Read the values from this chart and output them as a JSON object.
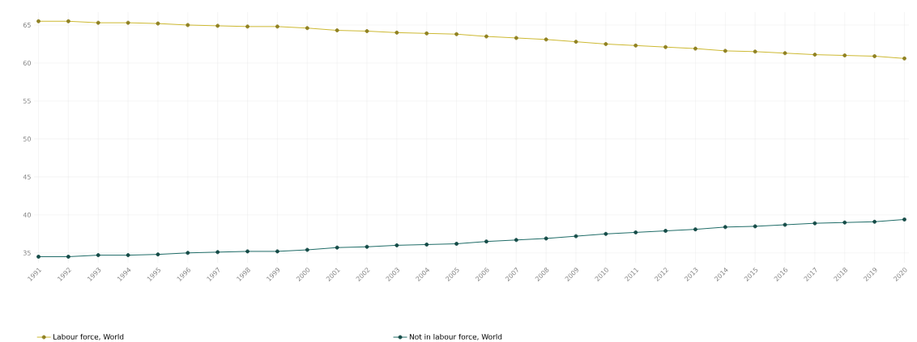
{
  "chart_data": {
    "type": "line",
    "categories": [
      "1991",
      "1992",
      "1993",
      "1994",
      "1995",
      "1996",
      "1997",
      "1998",
      "1999",
      "2000",
      "2001",
      "2002",
      "2003",
      "2004",
      "2005",
      "2006",
      "2007",
      "2008",
      "2009",
      "2010",
      "2011",
      "2012",
      "2013",
      "2014",
      "2015",
      "2016",
      "2017",
      "2018",
      "2019",
      "2020"
    ],
    "series": [
      {
        "name": "Labour force, World",
        "color": "#cdb931",
        "values": [
          65.5,
          65.5,
          65.3,
          65.3,
          65.2,
          65.0,
          64.9,
          64.8,
          64.8,
          64.6,
          64.3,
          64.2,
          64.0,
          63.9,
          63.8,
          63.5,
          63.3,
          63.1,
          62.8,
          62.5,
          62.3,
          62.1,
          61.9,
          61.6,
          61.5,
          61.3,
          61.1,
          61.0,
          60.9,
          60.6
        ]
      },
      {
        "name": "Not in labour force, World",
        "color": "#1e6b66",
        "values": [
          34.5,
          34.5,
          34.7,
          34.7,
          34.8,
          35.0,
          35.1,
          35.2,
          35.2,
          35.4,
          35.7,
          35.8,
          36.0,
          36.1,
          36.2,
          36.5,
          36.7,
          36.9,
          37.2,
          37.5,
          37.7,
          37.9,
          38.1,
          38.4,
          38.5,
          38.7,
          38.9,
          39.0,
          39.1,
          39.4
        ]
      }
    ],
    "ylim": [
      33.7,
      66.7
    ],
    "yticks": [
      35,
      40,
      45,
      50,
      55,
      60,
      65
    ],
    "grid": true,
    "legend": "bottom",
    "marker": "circle",
    "line_style": "solid"
  }
}
